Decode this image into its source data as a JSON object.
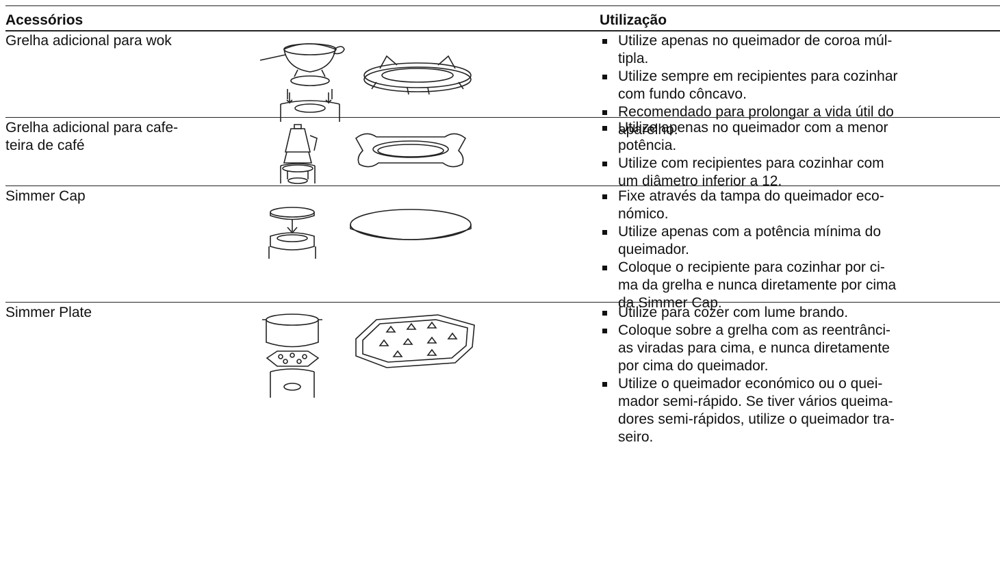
{
  "table": {
    "header": [
      "Acessórios",
      "Utilização"
    ],
    "rows": [
      {
        "name": [
          "Grelha adicional para wok"
        ],
        "usage": [
          [
            "Utilize apenas no queimador de coroa múl-",
            "tipla."
          ],
          [
            "Utilize sempre em recipientes para cozinhar",
            "com fundo côncavo."
          ],
          [
            "Recomendado para prolongar a vida útil do",
            "aparelho."
          ]
        ]
      },
      {
        "name": [
          "Grelha adicional para cafe-",
          "teira de café"
        ],
        "usage": [
          [
            "Utilize apenas no queimador com a menor",
            "potência."
          ],
          [
            "Utilize com recipientes para cozinhar com",
            "um diâmetro inferior a 12."
          ]
        ]
      },
      {
        "name": [
          "Simmer Cap"
        ],
        "usage": [
          [
            "Fixe através da tampa do queimador eco-",
            "nómico."
          ],
          [
            "Utilize apenas com a potência mínima do",
            "queimador."
          ],
          [
            "Coloque o recipiente para cozinhar por ci-",
            "ma da grelha e nunca diretamente por cima",
            "da Simmer Cap."
          ]
        ]
      },
      {
        "name": [
          "Simmer Plate"
        ],
        "usage": [
          [
            "Utilize para cozer com lume brando."
          ],
          [
            "Coloque sobre a grelha com as reentrânci-",
            "as viradas para cima, e nunca diretamente",
            "por cima do queimador."
          ],
          [
            "Utilize o queimador económico ou o quei-",
            "mador semi-rápido. Se tiver vários queima-",
            "dores semi-rápidos, utilize o queimador tra-",
            "seiro."
          ]
        ]
      }
    ]
  }
}
